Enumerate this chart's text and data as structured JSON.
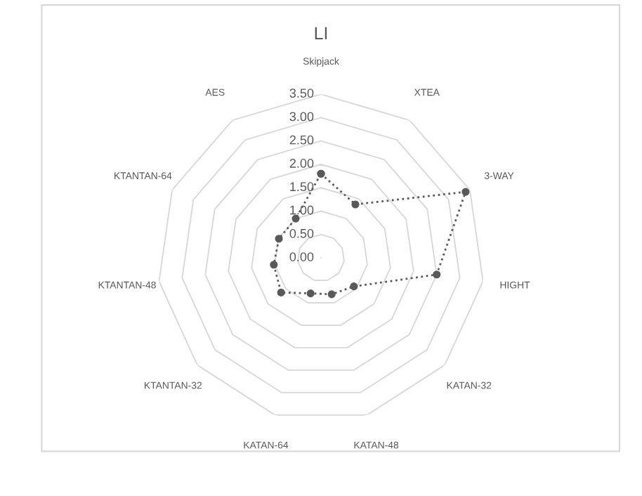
{
  "chart_data": {
    "type": "radar",
    "title": "LI",
    "categories": [
      "Skipjack",
      "XTEA",
      "3-WAY",
      "HIGHT",
      "KATAN-32",
      "KATAN-48",
      "KATAN-64",
      "KTANTAN-32",
      "KTANTAN-48",
      "KTANTAN-64",
      "AES"
    ],
    "series": [
      {
        "color": "#595959",
        "values": [
          1.8,
          1.36,
          3.4,
          2.5,
          0.93,
          0.81,
          0.79,
          1.13,
          1.02,
          0.99,
          1.0
        ]
      }
    ],
    "ylim": [
      0,
      3.5
    ],
    "yticks": [
      {
        "value": 0,
        "label": "0.00"
      },
      {
        "value": 0.5,
        "label": "0.50"
      },
      {
        "value": 1,
        "label": "1.00"
      },
      {
        "value": 1.5,
        "label": "1.50"
      },
      {
        "value": 2,
        "label": "2.00"
      },
      {
        "value": 2.5,
        "label": "2.50"
      },
      {
        "value": 3,
        "label": "3.00"
      },
      {
        "value": 3.5,
        "label": "3.50"
      }
    ],
    "grid": true,
    "marker": "circle",
    "line_style": "dotted"
  }
}
